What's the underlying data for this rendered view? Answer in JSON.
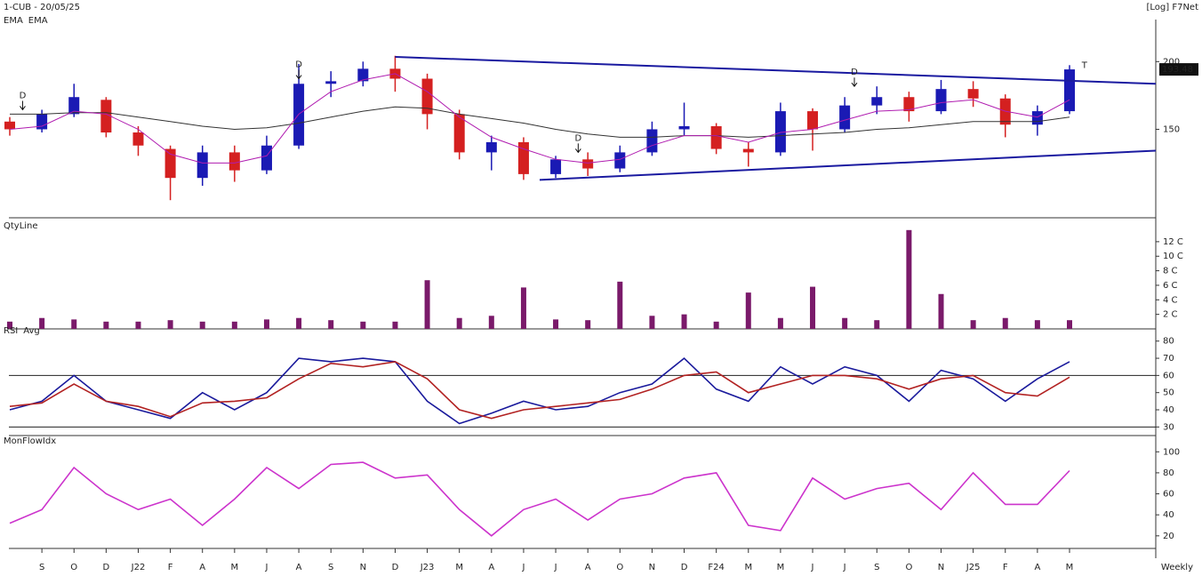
{
  "chart_data": [
    {
      "type": "candlestick",
      "title": "1-CUB - 20/05/25",
      "corner_label": "[Log] F7Net",
      "log": true,
      "ylim": [
        103,
        232
      ],
      "yticks": [
        150,
        200
      ],
      "ohlc": {
        "open": [
          155,
          150,
          160,
          170,
          148,
          138,
          122,
          136,
          126,
          140,
          182,
          184,
          194,
          186,
          160,
          136,
          142,
          124,
          132,
          127,
          136,
          150,
          152,
          138,
          136,
          162,
          150,
          166,
          172,
          162,
          178,
          171,
          153,
          162
        ],
        "high": [
          158,
          163,
          182,
          172,
          152,
          140,
          140,
          140,
          146,
          198,
          192,
          200,
          205,
          190,
          163,
          146,
          145,
          134,
          136,
          140,
          155,
          168,
          154,
          142,
          168,
          164,
          172,
          180,
          176,
          185,
          184,
          174,
          166,
          197
        ],
        "low": [
          146,
          148,
          158,
          145,
          134,
          111,
          118,
          120,
          124,
          138,
          172,
          180,
          176,
          150,
          132,
          126,
          121,
          122,
          123,
          125,
          134,
          146,
          135,
          128,
          134,
          137,
          148,
          160,
          155,
          160,
          165,
          145,
          146,
          160
        ],
        "close": [
          150,
          160,
          172,
          148,
          140,
          122,
          136,
          126,
          140,
          182,
          184,
          194,
          186,
          160,
          136,
          142,
          124,
          132,
          127,
          136,
          150,
          152,
          138,
          136,
          162,
          150,
          166,
          172,
          162,
          178,
          171,
          153,
          162,
          193.48
        ],
        "up_color": "#1a1ab4",
        "down_color": "#d42020"
      },
      "series": [
        {
          "name": "EMA",
          "color": "#333333",
          "values": [
            160,
            160,
            161,
            161,
            158,
            155,
            152,
            150,
            151,
            154,
            158,
            162,
            165,
            164,
            160,
            157,
            154,
            150,
            147,
            145,
            145,
            146,
            146,
            145,
            146,
            147,
            148,
            150,
            151,
            153,
            155,
            155,
            155,
            158
          ]
        },
        {
          "name": "EMA",
          "color": "#b01cb0",
          "values": [
            150,
            152,
            162,
            160,
            150,
            135,
            130,
            130,
            134,
            160,
            176,
            185,
            190,
            176,
            158,
            145,
            138,
            132,
            130,
            132,
            140,
            146,
            146,
            142,
            148,
            150,
            156,
            162,
            163,
            168,
            170,
            162,
            158,
            170
          ]
        }
      ],
      "trendlines": [
        {
          "color": "#1a1aa0",
          "x": [
            12,
            35.7
          ],
          "y": [
            204,
            182
          ]
        },
        {
          "color": "#1a1aa0",
          "x": [
            16.5,
            35.7
          ],
          "y": [
            121,
            137
          ]
        }
      ],
      "markers": [
        {
          "text": "D",
          "x": 0.4,
          "y": 163
        },
        {
          "text": "D",
          "x": 9,
          "y": 186
        },
        {
          "text": "D",
          "x": 17.7,
          "y": 136
        },
        {
          "text": "D",
          "x": 26.3,
          "y": 180
        },
        {
          "text": "T",
          "x": 33.3,
          "y": 197
        }
      ]
    },
    {
      "type": "bar",
      "ylim": [
        0,
        13.7
      ],
      "yticks": [
        {
          "value": 2,
          "label": "2 C"
        },
        {
          "value": 4,
          "label": "4 C"
        },
        {
          "value": 6,
          "label": "6 C"
        },
        {
          "value": 8,
          "label": "8 C"
        },
        {
          "value": 10,
          "label": "10 C"
        },
        {
          "value": 12,
          "label": "12 C"
        }
      ],
      "series": [
        {
          "name": "QtyLine",
          "color": "#7a1a6a",
          "values": [
            1,
            1.5,
            1.3,
            1,
            1,
            1.2,
            1,
            1,
            1.3,
            1.5,
            1.2,
            1,
            1,
            6.7,
            1.5,
            1.8,
            5.7,
            1.3,
            1.2,
            6.5,
            1.8,
            2,
            1,
            5,
            1.5,
            5.8,
            1.5,
            1.2,
            13.6,
            4.8,
            1.2,
            1.5,
            1.2,
            1.2
          ]
        }
      ]
    },
    {
      "type": "line",
      "ylim": [
        25,
        84
      ],
      "yticks": [
        30,
        40,
        50,
        60,
        70,
        80
      ],
      "levels": [
        60,
        30
      ],
      "series": [
        {
          "name": "RSI",
          "color": "#1a1a9c",
          "values": [
            40,
            45,
            60,
            45,
            40,
            35,
            50,
            40,
            50,
            70,
            68,
            70,
            68,
            45,
            32,
            38,
            45,
            40,
            42,
            50,
            55,
            70,
            52,
            45,
            65,
            55,
            65,
            60,
            45,
            63,
            58,
            45,
            58,
            68
          ]
        },
        {
          "name": "Avg",
          "color": "#b22222",
          "values": [
            42,
            44,
            55,
            45,
            42,
            36,
            44,
            45,
            47,
            58,
            67,
            65,
            68,
            58,
            40,
            35,
            40,
            42,
            44,
            46,
            52,
            60,
            62,
            50,
            55,
            60,
            60,
            58,
            52,
            58,
            60,
            50,
            48,
            59
          ]
        }
      ]
    },
    {
      "type": "line",
      "ylim": [
        8,
        107
      ],
      "yticks": [
        20,
        40,
        60,
        80,
        100
      ],
      "x_label": "Weekly",
      "categories": [
        null,
        "S",
        "O",
        "D",
        "J22",
        "F",
        "A",
        "M",
        "J",
        "A",
        "S",
        "N",
        "D",
        "J23",
        "M",
        "A",
        "J",
        "J",
        "A",
        "O",
        "N",
        "D",
        "F24",
        "M",
        "M",
        "J",
        "J",
        "S",
        "O",
        "N",
        "J25",
        "F",
        "A",
        "M"
      ],
      "series": [
        {
          "name": "MonFlowIdx",
          "color": "#cc33cc",
          "values": [
            32,
            45,
            85,
            60,
            45,
            55,
            30,
            55,
            85,
            65,
            88,
            90,
            75,
            78,
            45,
            20,
            45,
            55,
            35,
            55,
            60,
            75,
            80,
            30,
            25,
            75,
            55,
            65,
            70,
            45,
            80,
            50,
            50,
            82
          ]
        }
      ]
    }
  ]
}
